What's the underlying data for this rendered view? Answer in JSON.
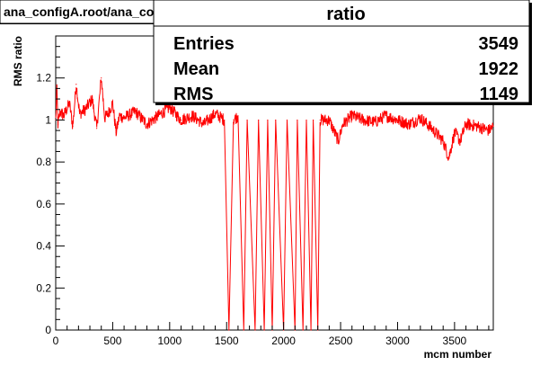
{
  "title_box": {
    "text": "ana_configA.root/ana_configB.root"
  },
  "stats_box": {
    "title": "ratio",
    "rows": [
      {
        "label": "Entries",
        "value": "3549"
      },
      {
        "label": "Mean",
        "value": "1922"
      },
      {
        "label": "RMS",
        "value": "1149"
      }
    ]
  },
  "chart_data": {
    "type": "line",
    "title": "ratio",
    "xlabel": "mcm number",
    "ylabel": "RMS ratio",
    "xlim": [
      0,
      3840
    ],
    "ylim": [
      0,
      1.4
    ],
    "x_ticks": [
      {
        "value": 0,
        "label": "0"
      },
      {
        "value": 500,
        "label": "500"
      },
      {
        "value": 1000,
        "label": "1000"
      },
      {
        "value": 1500,
        "label": "1500"
      },
      {
        "value": 2000,
        "label": "2000"
      },
      {
        "value": 2500,
        "label": "2500"
      },
      {
        "value": 3000,
        "label": "3000"
      },
      {
        "value": 3500,
        "label": "3500"
      }
    ],
    "y_ticks": [
      {
        "value": 0,
        "label": "0"
      },
      {
        "value": 0.2,
        "label": "0.2"
      },
      {
        "value": 0.4,
        "label": "0.4"
      },
      {
        "value": 0.6,
        "label": "0.6"
      },
      {
        "value": 0.8,
        "label": "0.8"
      },
      {
        "value": 1.0,
        "label": "1"
      },
      {
        "value": 1.2,
        "label": "1.2"
      }
    ],
    "grid": false,
    "line_color": "#ff0000",
    "baseline": 1.0,
    "noise_amplitude": 0.03,
    "series": [
      {
        "values": [
          [
            0,
            1.0
          ],
          [
            10,
            1.14
          ],
          [
            20,
            0.98
          ],
          [
            40,
            1.04
          ],
          [
            70,
            1.02
          ],
          [
            120,
            1.08
          ],
          [
            150,
            0.97
          ],
          [
            180,
            1.17
          ],
          [
            210,
            1.03
          ],
          [
            260,
            1.05
          ],
          [
            320,
            1.1
          ],
          [
            360,
            0.96
          ],
          [
            400,
            1.2
          ],
          [
            430,
            1.01
          ],
          [
            460,
            1.03
          ],
          [
            500,
            1.08
          ],
          [
            530,
            0.94
          ],
          [
            560,
            1.02
          ],
          [
            600,
            1.01
          ],
          [
            700,
            1.04
          ],
          [
            800,
            0.98
          ],
          [
            900,
            1.02
          ],
          [
            1000,
            1.06
          ],
          [
            1100,
            1.0
          ],
          [
            1200,
            1.02
          ],
          [
            1300,
            0.98
          ],
          [
            1400,
            1.03
          ],
          [
            1480,
            1.0
          ],
          [
            1520,
            0.0
          ],
          [
            1560,
            1.0
          ],
          [
            1600,
            1.02
          ],
          [
            1650,
            0.0
          ],
          [
            1680,
            1.0
          ],
          [
            1750,
            0.0
          ],
          [
            1780,
            1.0
          ],
          [
            1830,
            0.0
          ],
          [
            1860,
            1.0
          ],
          [
            1900,
            0.0
          ],
          [
            1930,
            1.0
          ],
          [
            2000,
            0.0
          ],
          [
            2030,
            1.0
          ],
          [
            2100,
            0.0
          ],
          [
            2120,
            1.0
          ],
          [
            2170,
            0.0
          ],
          [
            2200,
            1.0
          ],
          [
            2240,
            0.0
          ],
          [
            2260,
            1.0
          ],
          [
            2300,
            0.0
          ],
          [
            2320,
            1.0
          ],
          [
            2400,
            1.0
          ],
          [
            2480,
            0.9
          ],
          [
            2520,
            0.98
          ],
          [
            2600,
            1.02
          ],
          [
            2700,
            1.0
          ],
          [
            2800,
            0.99
          ],
          [
            2900,
            1.02
          ],
          [
            3000,
            1.0
          ],
          [
            3100,
            0.98
          ],
          [
            3200,
            1.01
          ],
          [
            3300,
            0.96
          ],
          [
            3400,
            0.9
          ],
          [
            3450,
            0.82
          ],
          [
            3500,
            0.94
          ],
          [
            3550,
            0.9
          ],
          [
            3600,
            0.98
          ],
          [
            3700,
            0.97
          ],
          [
            3800,
            0.95
          ],
          [
            3840,
            0.97
          ]
        ]
      }
    ]
  }
}
